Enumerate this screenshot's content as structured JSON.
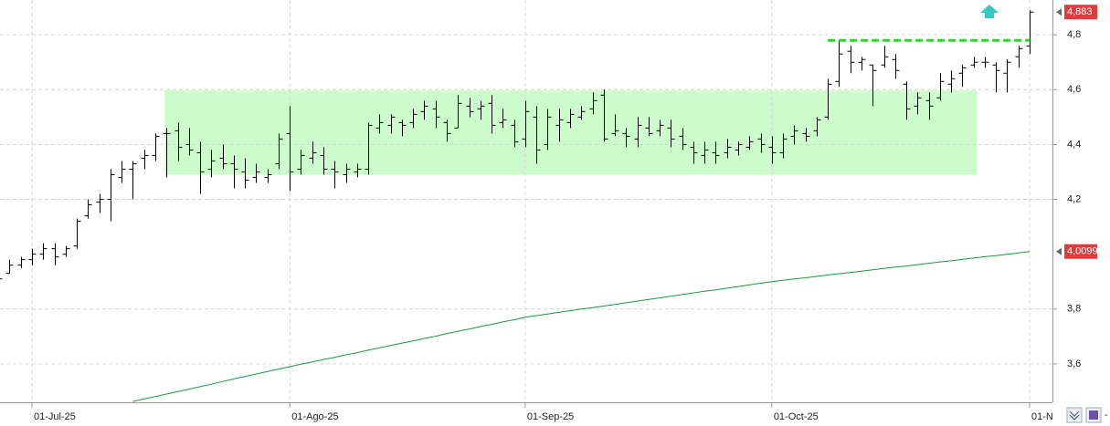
{
  "chart_data": {
    "type": "ohlc",
    "categories": [
      null,
      null,
      null,
      "01-Jul-25",
      null,
      null,
      null,
      null,
      null,
      null,
      null,
      null,
      null,
      null,
      null,
      null,
      null,
      null,
      null,
      null,
      null,
      null,
      null,
      null,
      null,
      null,
      "01-Ago-25",
      null,
      null,
      null,
      null,
      null,
      null,
      null,
      null,
      null,
      null,
      null,
      null,
      null,
      null,
      null,
      null,
      null,
      null,
      null,
      null,
      "01-Sep-25",
      null,
      null,
      null,
      null,
      null,
      null,
      null,
      null,
      null,
      null,
      null,
      null,
      null,
      null,
      null,
      null,
      null,
      null,
      null,
      null,
      null,
      "01-Oct-25",
      null,
      null,
      null,
      null,
      null,
      null,
      null,
      null,
      null,
      null,
      null,
      null,
      null,
      null,
      null,
      null,
      null,
      null,
      null,
      null,
      null,
      null,
      "01-N"
    ],
    "open": [
      3.9,
      3.93,
      3.96,
      3.98,
      4.0,
      4.02,
      4.0,
      4.03,
      4.14,
      4.19,
      4.2,
      4.28,
      4.31,
      4.35,
      4.36,
      4.44,
      4.45,
      4.4,
      4.37,
      4.31,
      4.35,
      4.33,
      4.3,
      4.28,
      4.28,
      4.33,
      4.44,
      4.31,
      4.35,
      4.36,
      4.31,
      4.29,
      4.3,
      4.31,
      4.46,
      4.47,
      4.48,
      4.48,
      4.52,
      4.53,
      4.48,
      4.46,
      4.54,
      4.53,
      4.55,
      4.48,
      4.47,
      4.42,
      4.5,
      4.4,
      4.47,
      4.48,
      4.5,
      4.53,
      4.58,
      4.44,
      4.44,
      4.42,
      4.46,
      4.45,
      4.46,
      4.43,
      4.39,
      4.36,
      4.37,
      4.37,
      4.38,
      4.39,
      4.42,
      4.39,
      4.37,
      4.43,
      4.44,
      4.45,
      4.5,
      4.63,
      4.74,
      4.7,
      4.69,
      4.69,
      4.71,
      4.62,
      4.54,
      4.56,
      4.57,
      4.62,
      4.66,
      4.69,
      4.7,
      4.69,
      4.66,
      4.72,
      4.76
    ],
    "high": [
      3.93,
      3.98,
      3.99,
      4.02,
      4.04,
      4.04,
      4.03,
      4.13,
      4.2,
      4.22,
      4.31,
      4.34,
      4.34,
      4.38,
      4.44,
      4.46,
      4.48,
      4.46,
      4.41,
      4.38,
      4.4,
      4.36,
      4.35,
      4.33,
      4.31,
      4.44,
      4.54,
      4.38,
      4.41,
      4.39,
      4.34,
      4.33,
      4.33,
      4.48,
      4.51,
      4.51,
      4.49,
      4.53,
      4.56,
      4.56,
      4.49,
      4.58,
      4.57,
      4.56,
      4.58,
      4.53,
      4.49,
      4.56,
      4.54,
      4.53,
      4.53,
      4.53,
      4.54,
      4.59,
      4.6,
      4.51,
      4.46,
      4.5,
      4.5,
      4.49,
      4.49,
      4.46,
      4.41,
      4.41,
      4.41,
      4.42,
      4.41,
      4.43,
      4.44,
      4.43,
      4.44,
      4.47,
      4.46,
      4.5,
      4.64,
      4.78,
      4.76,
      4.72,
      4.69,
      4.76,
      4.73,
      4.63,
      4.59,
      4.59,
      4.66,
      4.67,
      4.69,
      4.72,
      4.72,
      4.7,
      4.71,
      4.76,
      4.89
    ],
    "low": [
      3.89,
      3.93,
      3.95,
      3.96,
      3.98,
      3.96,
      3.99,
      4.02,
      4.13,
      4.15,
      4.12,
      4.26,
      4.2,
      4.31,
      4.34,
      4.28,
      4.34,
      4.36,
      4.22,
      4.28,
      4.31,
      4.24,
      4.24,
      4.26,
      4.26,
      4.31,
      4.23,
      4.29,
      4.33,
      4.29,
      4.24,
      4.26,
      4.28,
      4.29,
      4.44,
      4.44,
      4.43,
      4.46,
      4.49,
      4.46,
      4.41,
      4.46,
      4.5,
      4.49,
      4.44,
      4.46,
      4.39,
      4.39,
      4.33,
      4.38,
      4.41,
      4.46,
      4.49,
      4.51,
      4.41,
      4.43,
      4.39,
      4.39,
      4.43,
      4.43,
      4.39,
      4.38,
      4.33,
      4.33,
      4.33,
      4.35,
      4.36,
      4.38,
      4.37,
      4.33,
      4.35,
      4.4,
      4.41,
      4.43,
      4.49,
      4.61,
      4.66,
      4.67,
      4.54,
      4.68,
      4.64,
      4.49,
      4.51,
      4.49,
      4.56,
      4.59,
      4.61,
      4.68,
      4.68,
      4.59,
      4.59,
      4.68,
      4.73
    ],
    "close": [
      3.91,
      3.96,
      3.98,
      4.0,
      4.02,
      3.99,
      4.02,
      4.12,
      4.18,
      4.2,
      4.29,
      4.31,
      4.33,
      4.36,
      4.43,
      4.44,
      4.39,
      4.38,
      4.3,
      4.34,
      4.33,
      4.31,
      4.27,
      4.3,
      4.29,
      4.42,
      4.3,
      4.36,
      4.37,
      4.31,
      4.3,
      4.31,
      4.31,
      4.47,
      4.48,
      4.5,
      4.47,
      4.51,
      4.54,
      4.5,
      4.44,
      4.55,
      4.52,
      4.54,
      4.47,
      4.49,
      4.41,
      4.52,
      4.38,
      4.5,
      4.49,
      4.51,
      4.52,
      4.56,
      4.42,
      4.45,
      4.43,
      4.47,
      4.44,
      4.47,
      4.42,
      4.4,
      4.37,
      4.38,
      4.36,
      4.39,
      4.4,
      4.41,
      4.4,
      4.37,
      4.42,
      4.45,
      4.43,
      4.49,
      4.62,
      4.73,
      4.7,
      4.71,
      4.67,
      4.72,
      4.67,
      4.53,
      4.57,
      4.54,
      4.63,
      4.64,
      4.68,
      4.7,
      4.7,
      4.67,
      4.7,
      4.75,
      4.883
    ],
    "close_label": "4,883",
    "bar_color": "#000000",
    "moving_average": {
      "color": "#1a9a3a",
      "label": "4,0099",
      "values": [
        null,
        null,
        null,
        null,
        null,
        null,
        null,
        null,
        null,
        null,
        null,
        null,
        3.463,
        3.472,
        3.481,
        3.49,
        3.499,
        3.508,
        3.517,
        3.526,
        3.536,
        3.545,
        3.554,
        3.563,
        3.572,
        3.581,
        3.59,
        3.599,
        3.607,
        3.616,
        3.624,
        3.633,
        3.641,
        3.65,
        3.659,
        3.667,
        3.676,
        3.684,
        3.693,
        3.701,
        3.71,
        3.719,
        3.727,
        3.736,
        3.744,
        3.753,
        3.761,
        3.77,
        3.776,
        3.782,
        3.788,
        3.794,
        3.8,
        3.805,
        3.811,
        3.817,
        3.823,
        3.829,
        3.835,
        3.841,
        3.847,
        3.853,
        3.859,
        3.865,
        3.87,
        3.876,
        3.882,
        3.888,
        3.894,
        3.9,
        3.905,
        3.91,
        3.914,
        3.919,
        3.924,
        3.929,
        3.933,
        3.938,
        3.943,
        3.948,
        3.953,
        3.957,
        3.962,
        3.967,
        3.972,
        3.976,
        3.981,
        3.986,
        3.991,
        3.995,
        4.0,
        4.005,
        4.0099
      ]
    },
    "zone": {
      "from": 4.29,
      "to": 4.597,
      "start": 15,
      "end": 87,
      "color": "#ccfccc"
    },
    "resistance": {
      "value": 4.78,
      "start": 74,
      "end": 92,
      "color": "#22dd22"
    },
    "label_color": "#e23a3a",
    "ylim": [
      3.46,
      4.927
    ],
    "yticks": [
      {
        "value": 3.6,
        "label": "3,6"
      },
      {
        "value": 3.8,
        "label": "3,8"
      },
      {
        "value": 4.2,
        "label": "4,2"
      },
      {
        "value": 4.4,
        "label": "4,4"
      },
      {
        "value": 4.6,
        "label": "4,6"
      },
      {
        "value": 4.8,
        "label": "4,8"
      }
    ],
    "grid": true
  }
}
